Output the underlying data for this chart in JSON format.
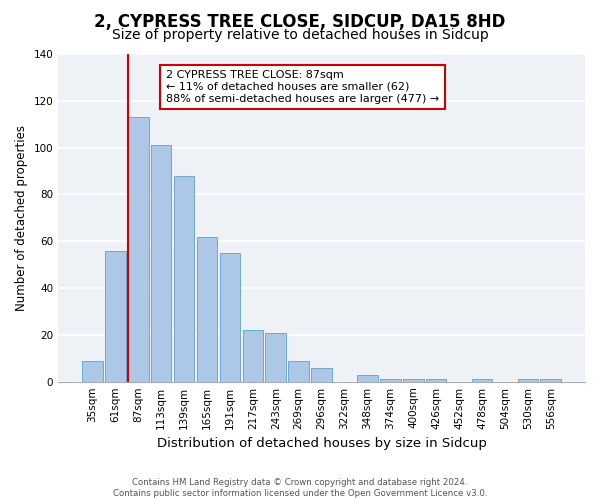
{
  "title": "2, CYPRESS TREE CLOSE, SIDCUP, DA15 8HD",
  "subtitle": "Size of property relative to detached houses in Sidcup",
  "xlabel": "Distribution of detached houses by size in Sidcup",
  "ylabel": "Number of detached properties",
  "bar_labels": [
    "35sqm",
    "61sqm",
    "87sqm",
    "113sqm",
    "139sqm",
    "165sqm",
    "191sqm",
    "217sqm",
    "243sqm",
    "269sqm",
    "296sqm",
    "322sqm",
    "348sqm",
    "374sqm",
    "400sqm",
    "426sqm",
    "452sqm",
    "478sqm",
    "504sqm",
    "530sqm",
    "556sqm"
  ],
  "bar_values": [
    9,
    56,
    113,
    101,
    88,
    62,
    55,
    22,
    21,
    9,
    6,
    0,
    3,
    1,
    1,
    1,
    0,
    1,
    0,
    1,
    1
  ],
  "bar_color": "#adc8e6",
  "bar_edge_color": "#6aaad4",
  "vline_index": 2,
  "vline_color": "#cc0000",
  "ylim": [
    0,
    140
  ],
  "yticks": [
    0,
    20,
    40,
    60,
    80,
    100,
    120,
    140
  ],
  "annotation_title": "2 CYPRESS TREE CLOSE: 87sqm",
  "annotation_line1": "← 11% of detached houses are smaller (62)",
  "annotation_line2": "88% of semi-detached houses are larger (477) →",
  "annotation_box_color": "#cc0000",
  "footer_line1": "Contains HM Land Registry data © Crown copyright and database right 2024.",
  "footer_line2": "Contains public sector information licensed under the Open Government Licence v3.0.",
  "bg_color": "#eef2f7",
  "grid_color": "#ffffff",
  "title_fontsize": 12,
  "subtitle_fontsize": 10,
  "xlabel_fontsize": 9.5,
  "ylabel_fontsize": 8.5,
  "tick_fontsize": 7.5
}
